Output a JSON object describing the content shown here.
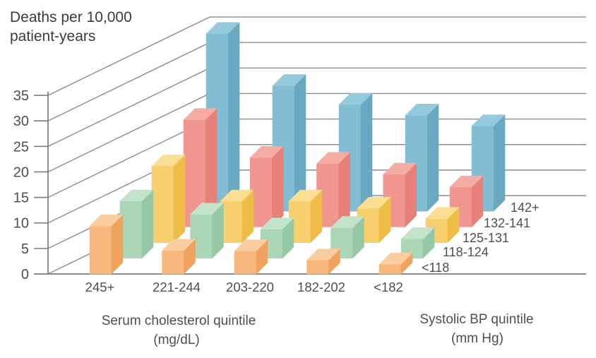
{
  "title": {
    "line1": "Deaths per 10,000",
    "line2": "patient-years"
  },
  "axes": {
    "y_ticks": [
      0,
      5,
      10,
      15,
      20,
      25,
      30,
      35
    ],
    "x_title_line1": "Serum cholesterol quintile",
    "x_title_line2": "(mg/dL)",
    "depth_title_line1": "Systolic BP quintile",
    "depth_title_line2": "(mm Hg)"
  },
  "chart_data": {
    "type": "bar",
    "variant": "3d-grouped-depth-rows",
    "title": "Deaths per 10,000 patient-years",
    "x_axis_label": "Serum cholesterol quintile (mg/dL)",
    "depth_axis_label": "Systolic BP quintile (mm Hg)",
    "categories": [
      "245+",
      "221-244",
      "203-220",
      "182-202",
      "<182"
    ],
    "depth_categories_front_to_back": [
      "<118",
      "118-124",
      "125-131",
      "132-141",
      "142+"
    ],
    "ylim": [
      0,
      35
    ],
    "grid": true,
    "series": [
      {
        "name": "<118",
        "color": "#F7B77D",
        "values": [
          9.4,
          4.6,
          4.5,
          2.7,
          1.9
        ]
      },
      {
        "name": "118-124",
        "color": "#ABD7B7",
        "values": [
          11.2,
          8.6,
          5.7,
          6.0,
          3.8
        ]
      },
      {
        "name": "125-131",
        "color": "#F7CF6C",
        "values": [
          15.0,
          8.1,
          8.1,
          6.7,
          4.7
        ]
      },
      {
        "name": "132-141",
        "color": "#F1968F",
        "values": [
          21.0,
          13.6,
          12.4,
          10.3,
          7.8
        ]
      },
      {
        "name": "142+",
        "color": "#82BDD4",
        "values": [
          34.8,
          24.6,
          20.9,
          18.8,
          16.7
        ]
      }
    ]
  },
  "colors": {
    "background": "#FFFFFF",
    "grid": "#8C8C8C",
    "axis": "#7C7C7C",
    "text": "#4F4F52",
    "title_text": "#3B3B3D",
    "bar_faces": {
      "<118": {
        "front": "#F7B77D",
        "side": "#EFA35F",
        "top": "#FACDA0"
      },
      "118-124": {
        "front": "#ABD7B7",
        "side": "#95C8A5",
        "top": "#C4E3CB"
      },
      "125-131": {
        "front": "#F7CF6C",
        "side": "#EFBC48",
        "top": "#FADF92"
      },
      "132-141": {
        "front": "#F1968F",
        "side": "#E8807A",
        "top": "#F5ACA5"
      },
      "142+": {
        "front": "#82BDD4",
        "side": "#69A8C1",
        "top": "#95C9DC"
      }
    }
  }
}
